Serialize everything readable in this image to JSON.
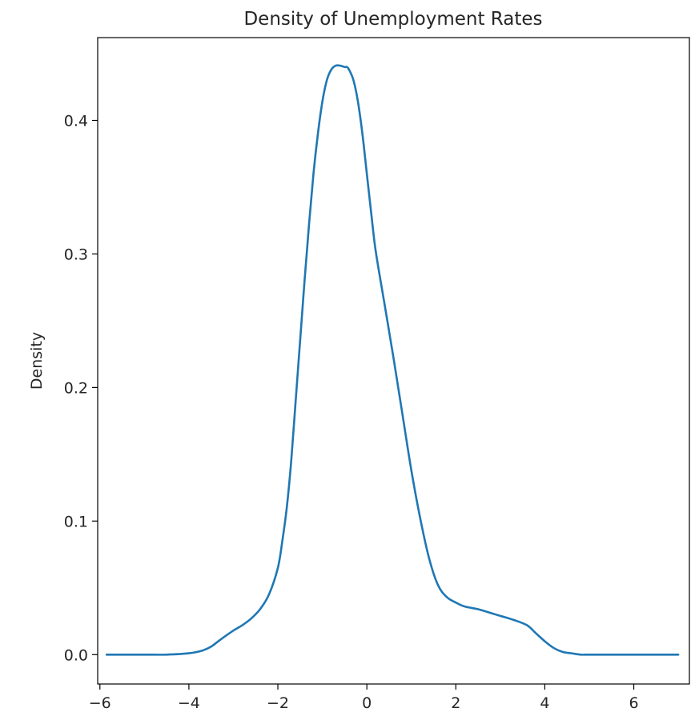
{
  "chart_data": {
    "type": "line",
    "title": "Density of Unemployment Rates",
    "xlabel": "",
    "ylabel": "Density",
    "xlim": [
      -6.05,
      7.25
    ],
    "ylim": [
      -0.022,
      0.462
    ],
    "xticks": [
      -6,
      -4,
      -2,
      0,
      2,
      4,
      6
    ],
    "xtick_labels": [
      "−6",
      "−4",
      "−2",
      "0",
      "2",
      "4",
      "6"
    ],
    "yticks": [
      0.0,
      0.1,
      0.2,
      0.3,
      0.4
    ],
    "ytick_labels": [
      "0.0",
      "0.1",
      "0.2",
      "0.3",
      "0.4"
    ],
    "grid": false,
    "series": [
      {
        "color": "#1f77b4",
        "x": [
          -5.85,
          -5.0,
          -4.5,
          -4.0,
          -3.7,
          -3.5,
          -3.3,
          -3.0,
          -2.8,
          -2.6,
          -2.4,
          -2.2,
          -2.0,
          -1.9,
          -1.8,
          -1.7,
          -1.6,
          -1.5,
          -1.4,
          -1.3,
          -1.2,
          -1.1,
          -1.0,
          -0.9,
          -0.8,
          -0.7,
          -0.6,
          -0.5,
          -0.45,
          -0.4,
          -0.3,
          -0.2,
          -0.1,
          0.0,
          0.1,
          0.2,
          0.4,
          0.6,
          0.8,
          1.0,
          1.2,
          1.4,
          1.6,
          1.8,
          2.0,
          2.2,
          2.5,
          2.8,
          3.0,
          3.3,
          3.6,
          3.8,
          4.0,
          4.2,
          4.4,
          4.6,
          4.8,
          5.0,
          5.5,
          6.0,
          7.0
        ],
        "y": [
          0.0,
          0.0,
          0.0,
          0.001,
          0.003,
          0.006,
          0.011,
          0.018,
          0.022,
          0.027,
          0.034,
          0.045,
          0.065,
          0.085,
          0.11,
          0.145,
          0.19,
          0.235,
          0.28,
          0.322,
          0.36,
          0.39,
          0.414,
          0.43,
          0.438,
          0.441,
          0.441,
          0.44,
          0.44,
          0.438,
          0.43,
          0.414,
          0.39,
          0.36,
          0.33,
          0.302,
          0.262,
          0.222,
          0.18,
          0.138,
          0.102,
          0.072,
          0.052,
          0.043,
          0.039,
          0.036,
          0.034,
          0.031,
          0.029,
          0.026,
          0.022,
          0.016,
          0.01,
          0.005,
          0.002,
          0.001,
          0.0,
          0.0,
          0.0,
          0.0,
          0.0
        ]
      }
    ]
  }
}
